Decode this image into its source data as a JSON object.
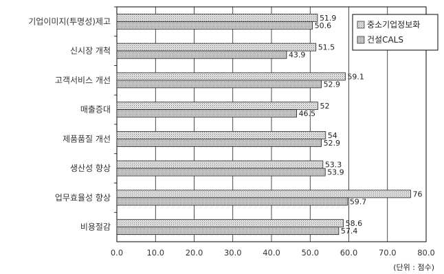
{
  "chart_data": {
    "type": "bar",
    "orientation": "horizontal",
    "categories": [
      "기업이미지(투명성)제고",
      "신시장 개척",
      "고객서비스 개선",
      "매출증대",
      "제품품질 개선",
      "생산성 향상",
      "업무효율성 향상",
      "비용절감"
    ],
    "series": [
      {
        "name": "중소기업정보화",
        "values": [
          51.9,
          51.5,
          59.1,
          52,
          54,
          53.3,
          76,
          58.6
        ],
        "labels": [
          "51.9",
          "51.5",
          "59.1",
          "52",
          "54",
          "53.3",
          "76",
          "58.6"
        ],
        "color": "#d0d0d0"
      },
      {
        "name": "건설CALS",
        "values": [
          50.6,
          43.9,
          52.9,
          46.5,
          52.9,
          53.9,
          59.7,
          57.4
        ],
        "labels": [
          "50.6",
          "43.9",
          "52.9",
          "46.5",
          "52.9",
          "53.9",
          "59.7",
          "57.4"
        ],
        "color": "#b8b8b8"
      }
    ],
    "xlim": [
      0,
      80
    ],
    "xticks": [
      0,
      10,
      20,
      30,
      40,
      50,
      60,
      70,
      80
    ],
    "xtick_labels": [
      "0.0",
      "10.0",
      "20.0",
      "30.0",
      "40.0",
      "50.0",
      "60.0",
      "70.0",
      "80.0"
    ],
    "unit_note": "(단위 : 점수)",
    "grid": "vertical",
    "legend_position": "top-right"
  }
}
